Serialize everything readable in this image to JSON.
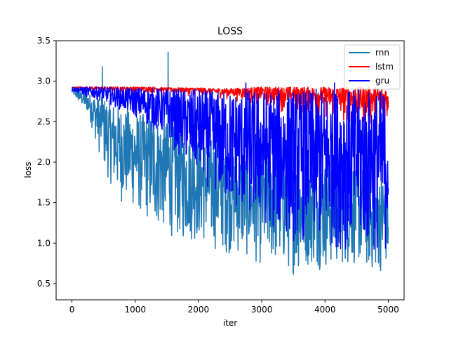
{
  "chart_data": {
    "type": "line",
    "title": "LOSS",
    "xlabel": "iter",
    "ylabel": "loss",
    "xlim": [
      -250,
      5250
    ],
    "ylim": [
      0.3,
      3.5
    ],
    "xticks": [
      0,
      1000,
      2000,
      3000,
      4000,
      5000
    ],
    "yticks": [
      0.5,
      1.0,
      1.5,
      2.0,
      2.5,
      3.0,
      3.5
    ],
    "xtick_labels": [
      "0",
      "1000",
      "2000",
      "3000",
      "4000",
      "5000"
    ],
    "ytick_labels": [
      "0.5",
      "1.0",
      "1.5",
      "2.0",
      "2.5",
      "3.0",
      "3.5"
    ],
    "legend_position": "top-right",
    "series": [
      {
        "name": "rnn",
        "color": "#1f77b4",
        "envelope_x": [
          0,
          250,
          500,
          750,
          1000,
          1250,
          1500,
          1750,
          2000,
          2250,
          2500,
          2750,
          3000,
          3250,
          3500,
          3750,
          4000,
          4250,
          4500,
          4750,
          5000
        ],
        "envelope_low": [
          2.85,
          2.6,
          1.9,
          1.5,
          1.4,
          1.2,
          1.1,
          1.0,
          1.0,
          0.9,
          0.85,
          0.8,
          0.7,
          0.7,
          0.6,
          0.7,
          0.65,
          0.7,
          0.7,
          0.6,
          0.65
        ],
        "envelope_high": [
          2.9,
          2.85,
          2.8,
          2.7,
          2.6,
          2.6,
          2.5,
          2.4,
          2.3,
          2.3,
          2.2,
          2.1,
          2.1,
          2.1,
          2.0,
          2.0,
          2.0,
          2.0,
          2.0,
          1.9,
          1.8
        ],
        "spikes": [
          [
            480,
            3.18
          ],
          [
            1520,
            3.36
          ]
        ]
      },
      {
        "name": "lstm",
        "color": "#ff0000",
        "envelope_x": [
          0,
          250,
          500,
          750,
          1000,
          1250,
          1500,
          1750,
          2000,
          2250,
          2500,
          2750,
          3000,
          3250,
          3500,
          3750,
          4000,
          4250,
          4500,
          4750,
          5000
        ],
        "envelope_low": [
          2.88,
          2.87,
          2.86,
          2.85,
          2.85,
          2.84,
          2.83,
          2.82,
          2.8,
          2.78,
          2.75,
          2.7,
          2.65,
          2.6,
          2.55,
          2.5,
          2.45,
          2.4,
          2.35,
          2.3,
          2.3
        ],
        "envelope_high": [
          2.93,
          2.93,
          2.93,
          2.93,
          2.93,
          2.93,
          2.92,
          2.92,
          2.92,
          2.91,
          2.91,
          2.92,
          2.93,
          2.93,
          2.93,
          2.93,
          2.93,
          2.93,
          2.93,
          2.93,
          2.93
        ]
      },
      {
        "name": "gru",
        "color": "#0000ff",
        "envelope_x": [
          0,
          250,
          500,
          750,
          1000,
          1250,
          1500,
          1750,
          2000,
          2250,
          2500,
          2750,
          3000,
          3250,
          3500,
          3750,
          4000,
          4250,
          4500,
          4750,
          5000
        ],
        "envelope_low": [
          2.88,
          2.8,
          2.75,
          2.65,
          2.55,
          2.4,
          2.3,
          2.0,
          1.8,
          1.6,
          1.4,
          1.3,
          1.2,
          1.1,
          1.0,
          1.0,
          0.95,
          0.9,
          0.9,
          0.85,
          0.85
        ],
        "envelope_high": [
          2.93,
          2.93,
          2.93,
          2.92,
          2.92,
          2.92,
          2.91,
          2.9,
          2.9,
          2.89,
          2.88,
          2.9,
          2.9,
          2.9,
          2.9,
          2.9,
          2.9,
          2.9,
          2.9,
          2.9,
          2.9
        ],
        "spikes": [
          [
            2750,
            2.98
          ],
          [
            4150,
            2.98
          ]
        ]
      }
    ]
  }
}
